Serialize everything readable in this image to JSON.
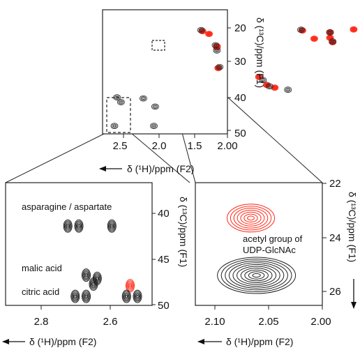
{
  "figure": {
    "axis_label_h": "δ (¹H)/ppm (F2)",
    "axis_label_c": "δ (¹³C)/ppm (F1)"
  },
  "chart_data": [
    {
      "type": "heatmap",
      "panel": "main",
      "xlabel": "δ (¹H)/ppm (F2)",
      "ylabel": "δ (¹³C)/ppm (F1)",
      "xlim": [
        2.95,
        2.0
      ],
      "ylim": [
        15,
        51
      ],
      "x_ticks": [
        "2.5",
        "2.0",
        "1.5",
        "2.00"
      ],
      "x_tick_values": [
        2.5,
        2.0,
        1.5,
        2.0
      ],
      "y_ticks": [
        "20",
        "30",
        "40",
        "50"
      ],
      "y_tick_values": [
        20,
        30,
        40,
        50
      ],
      "series": [
        {
          "name": "",
          "color": "#ff2a1a",
          "peaks": [
            [
              2.19,
              21.2
            ],
            [
              2.14,
              22.0
            ],
            [
              2.08,
              25.9
            ],
            [
              2.07,
              31.9
            ],
            [
              1.76,
              34.5
            ],
            [
              1.7,
              36.8
            ],
            [
              1.64,
              37.6
            ],
            [
              1.43,
              21.0
            ],
            [
              1.22,
              21.5
            ],
            [
              1.22,
              23.1
            ],
            [
              1.2,
              24.4
            ],
            [
              1.34,
              23.4
            ],
            [
              1.04,
              20.7
            ],
            [
              2.08,
              25.6
            ]
          ]
        },
        {
          "name": "",
          "color": "#222222",
          "peaks": [
            [
              2.2,
              20.9
            ],
            [
              2.09,
              25.3
            ],
            [
              2.08,
              26.8
            ],
            [
              2.06,
              31.6
            ],
            [
              1.73,
              35.4
            ],
            [
              1.68,
              37.2
            ],
            [
              1.44,
              20.8
            ],
            [
              1.22,
              21.6
            ],
            [
              1.2,
              24.2
            ],
            [
              1.54,
              38.2
            ],
            [
              2.84,
              40.4
            ],
            [
              2.81,
              41.8
            ],
            [
              2.64,
              40.7
            ],
            [
              2.56,
              48.7
            ],
            [
              2.86,
              48.7
            ],
            [
              2.55,
              43.1
            ]
          ]
        }
      ]
    },
    {
      "type": "heatmap",
      "panel": "inset-left",
      "xlabel": "δ (¹H)/ppm (F2)",
      "ylabel": "δ (¹³C)/ppm (F1)",
      "xlim": [
        2.9,
        2.5
      ],
      "ylim": [
        35,
        50
      ],
      "x_ticks": [
        "2.8",
        "2.6"
      ],
      "x_tick_values": [
        2.8,
        2.6
      ],
      "y_ticks": [
        "40",
        "45",
        "50"
      ],
      "y_tick_values": [
        40,
        45,
        50
      ],
      "annotations": [
        {
          "text": "asparagine / aspartate",
          "x": 2.88,
          "y": 38.9
        },
        {
          "text": "malic acid",
          "x": 2.88,
          "y": 46.3
        },
        {
          "text": "citric acid",
          "x": 2.88,
          "y": 48.9
        }
      ],
      "series": [
        {
          "name": "",
          "color": "#ff2a1a",
          "peaks": [
            [
              2.56,
              47.6
            ]
          ]
        },
        {
          "name": "",
          "color": "#222222",
          "peaks": [
            [
              2.73,
              40.3
            ],
            [
              2.7,
              40.3
            ],
            [
              2.61,
              40.3
            ],
            [
              2.68,
              46.3
            ],
            [
              2.65,
              46.7
            ],
            [
              2.71,
              48.9
            ],
            [
              2.68,
              48.9
            ],
            [
              2.57,
              48.9
            ],
            [
              2.54,
              48.9
            ],
            [
              2.66,
              47.4
            ]
          ]
        }
      ]
    },
    {
      "type": "heatmap",
      "panel": "inset-right",
      "xlabel": "δ (¹H)/ppm (F2)",
      "ylabel": "δ (¹³C)/ppm (F1)",
      "xlim": [
        2.135,
        2.0
      ],
      "ylim": [
        22,
        26.5
      ],
      "x_ticks": [
        "2.10",
        "2.05",
        "2.00"
      ],
      "x_tick_values": [
        2.1,
        2.05,
        2.0
      ],
      "y_ticks": [
        "22",
        "24",
        "26"
      ],
      "y_tick_values": [
        22,
        24,
        26
      ],
      "annotations": [
        {
          "text": "acetyl group of",
          "x": 2.04,
          "y": 24.2
        },
        {
          "text": "UDP-GlcNAc",
          "x": 2.04,
          "y": 24.65
        }
      ],
      "series": [
        {
          "name": "",
          "color": "#ff2a1a",
          "peaks": [
            [
              2.076,
              23.3
            ]
          ]
        },
        {
          "name": "",
          "color": "#222222",
          "peaks": [
            [
              2.07,
              25.4
            ]
          ]
        }
      ]
    }
  ]
}
